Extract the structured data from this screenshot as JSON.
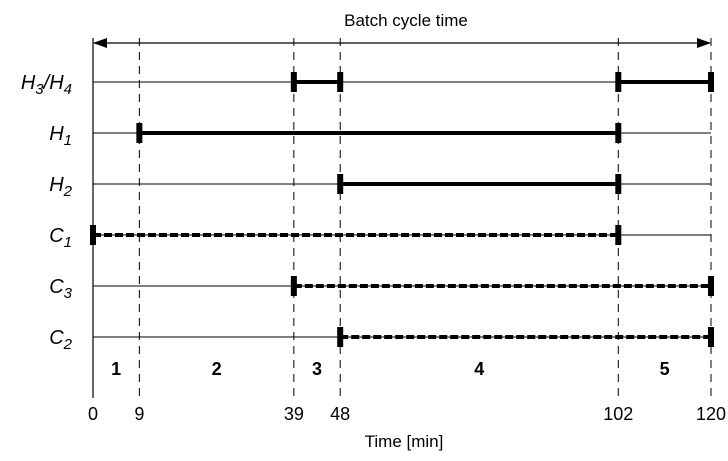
{
  "chart_data": {
    "type": "gantt",
    "title": "Batch cycle time",
    "xlabel": "Time  [min]",
    "xlim": [
      0,
      120
    ],
    "tick_values": [
      0,
      9,
      39,
      48,
      102,
      120
    ],
    "tick_labels": [
      "0",
      "9",
      "39",
      "48",
      "102",
      "120"
    ],
    "interval_labels": [
      "1",
      "2",
      "3",
      "4",
      "5"
    ],
    "rows": [
      {
        "base": "H",
        "sub": "3",
        "sep": "/",
        "base2": "H",
        "sub2": "4",
        "style": "solid",
        "segments": [
          [
            39,
            48
          ],
          [
            102,
            120
          ]
        ]
      },
      {
        "base": "H",
        "sub": "1",
        "style": "solid",
        "segments": [
          [
            9,
            102
          ]
        ]
      },
      {
        "base": "H",
        "sub": "2",
        "style": "solid",
        "segments": [
          [
            48,
            102
          ]
        ]
      },
      {
        "base": "C",
        "sub": "1",
        "style": "dashed",
        "segments": [
          [
            0,
            102
          ]
        ]
      },
      {
        "base": "C",
        "sub": "3",
        "style": "dashed",
        "segments": [
          [
            39,
            120
          ]
        ]
      },
      {
        "base": "C",
        "sub": "2",
        "style": "dashed",
        "segments": [
          [
            48,
            120
          ]
        ]
      }
    ],
    "colors": {
      "line": "#000000"
    }
  }
}
